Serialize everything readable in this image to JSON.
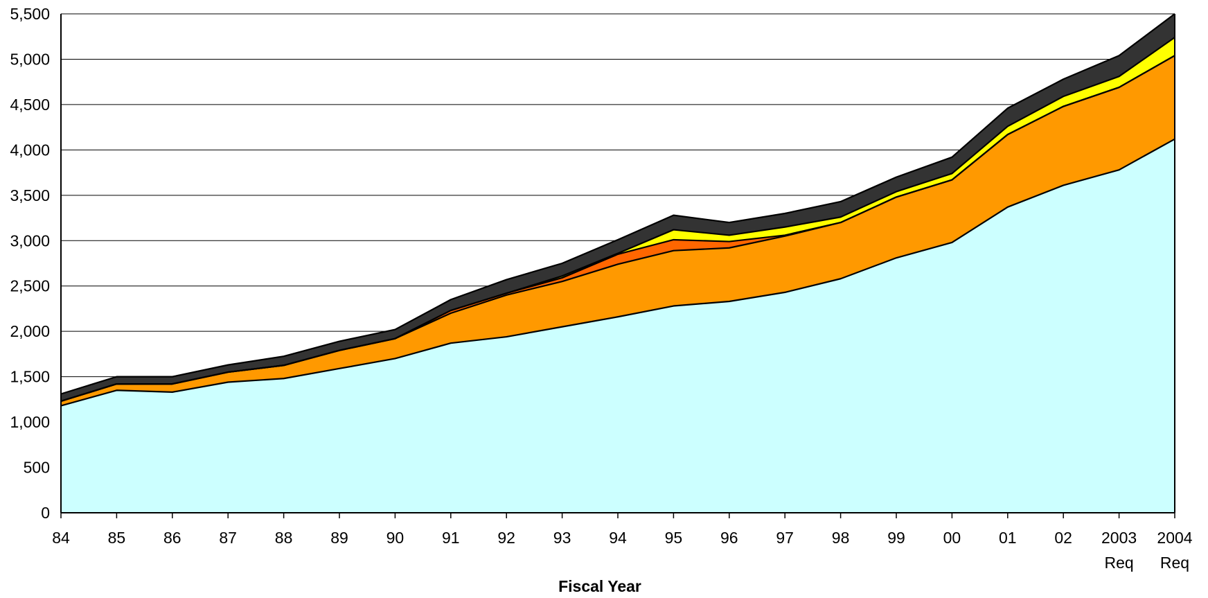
{
  "chart_data": {
    "type": "area",
    "stacked": true,
    "title": "",
    "xlabel": "Fiscal Year",
    "ylabel": "",
    "ylim": [
      0,
      5500
    ],
    "yticks": [
      0,
      500,
      1000,
      1500,
      2000,
      2500,
      3000,
      3500,
      4000,
      4500,
      5000,
      5500
    ],
    "ytick_labels": [
      "0",
      "500",
      "1,000",
      "1,500",
      "2,000",
      "2,500",
      "3,000",
      "3,500",
      "4,000",
      "4,500",
      "5,000",
      "5,500"
    ],
    "grid": true,
    "legend": "none",
    "categories": [
      [
        "84"
      ],
      [
        "85"
      ],
      [
        "86"
      ],
      [
        "87"
      ],
      [
        "88"
      ],
      [
        "89"
      ],
      [
        "90"
      ],
      [
        "91"
      ],
      [
        "92"
      ],
      [
        "93"
      ],
      [
        "94"
      ],
      [
        "95"
      ],
      [
        "96"
      ],
      [
        "97"
      ],
      [
        "98"
      ],
      [
        "99"
      ],
      [
        "00"
      ],
      [
        "01"
      ],
      [
        "02"
      ],
      [
        "2003",
        "Req"
      ],
      [
        "2004",
        "Req"
      ]
    ],
    "series": [
      {
        "color": "#ccffff",
        "values": [
          1180,
          1350,
          1330,
          1440,
          1480,
          1590,
          1700,
          1870,
          1940,
          2050,
          2160,
          2280,
          2330,
          2430,
          2580,
          2810,
          2980,
          3370,
          3610,
          3780,
          4120
        ]
      },
      {
        "color": "#ff9900",
        "values": [
          50,
          70,
          90,
          110,
          145,
          200,
          220,
          330,
          460,
          500,
          580,
          610,
          590,
          620,
          620,
          670,
          690,
          800,
          870,
          910,
          920
        ]
      },
      {
        "color": "#ff6600",
        "values": [
          0,
          0,
          0,
          0,
          0,
          0,
          0,
          30,
          20,
          40,
          110,
          120,
          70,
          10,
          0,
          0,
          0,
          0,
          0,
          0,
          0
        ]
      },
      {
        "color": "#ffff00",
        "values": [
          0,
          0,
          0,
          0,
          0,
          0,
          0,
          0,
          0,
          20,
          10,
          110,
          70,
          90,
          60,
          60,
          70,
          90,
          110,
          120,
          200
        ]
      },
      {
        "color": "#333333",
        "values": [
          80,
          80,
          80,
          80,
          100,
          100,
          100,
          120,
          150,
          140,
          150,
          160,
          140,
          150,
          170,
          160,
          180,
          200,
          190,
          230,
          260
        ]
      }
    ]
  }
}
